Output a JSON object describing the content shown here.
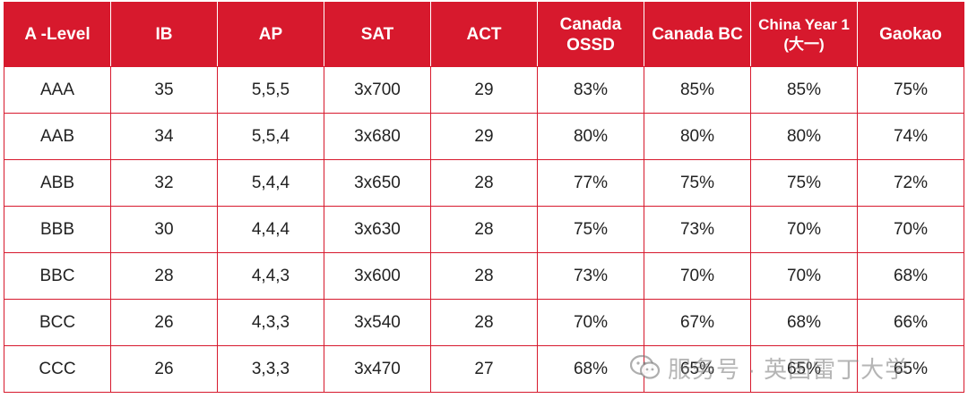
{
  "table": {
    "headers": [
      "A -Level",
      "IB",
      "AP",
      "SAT",
      "ACT",
      "Canada OSSD",
      "Canada BC",
      "China Year 1 (大一)",
      "Gaokao"
    ],
    "header_lines": [
      [
        "A -Level"
      ],
      [
        "IB"
      ],
      [
        "AP"
      ],
      [
        "SAT"
      ],
      [
        "ACT"
      ],
      [
        "Canada",
        "OSSD"
      ],
      [
        "Canada BC"
      ],
      [
        "China Year 1",
        "(大一)"
      ],
      [
        "Gaokao"
      ]
    ],
    "rows": [
      [
        "AAA",
        "35",
        "5,5,5",
        "3x700",
        "29",
        "83%",
        "85%",
        "85%",
        "75%"
      ],
      [
        "AAB",
        "34",
        "5,5,4",
        "3x680",
        "29",
        "80%",
        "80%",
        "80%",
        "74%"
      ],
      [
        "ABB",
        "32",
        "5,4,4",
        "3x650",
        "28",
        "77%",
        "75%",
        "75%",
        "72%"
      ],
      [
        "BBB",
        "30",
        "4,4,4",
        "3x630",
        "28",
        "75%",
        "73%",
        "70%",
        "70%"
      ],
      [
        "BBC",
        "28",
        "4,4,3",
        "3x600",
        "28",
        "73%",
        "70%",
        "70%",
        "68%"
      ],
      [
        "BCC",
        "26",
        "4,3,3",
        "3x540",
        "28",
        "70%",
        "67%",
        "68%",
        "66%"
      ],
      [
        "CCC",
        "26",
        "3,3,3",
        "3x470",
        "27",
        "68%",
        "65%",
        "65%",
        "65%"
      ]
    ]
  },
  "watermark": {
    "icon": "wechat-icon",
    "text": "服务号 · 英国雷丁大学"
  },
  "colors": {
    "header_bg": "#d7192d",
    "header_text": "#ffffff",
    "border": "#d7192d",
    "cell_text": "#222222"
  }
}
